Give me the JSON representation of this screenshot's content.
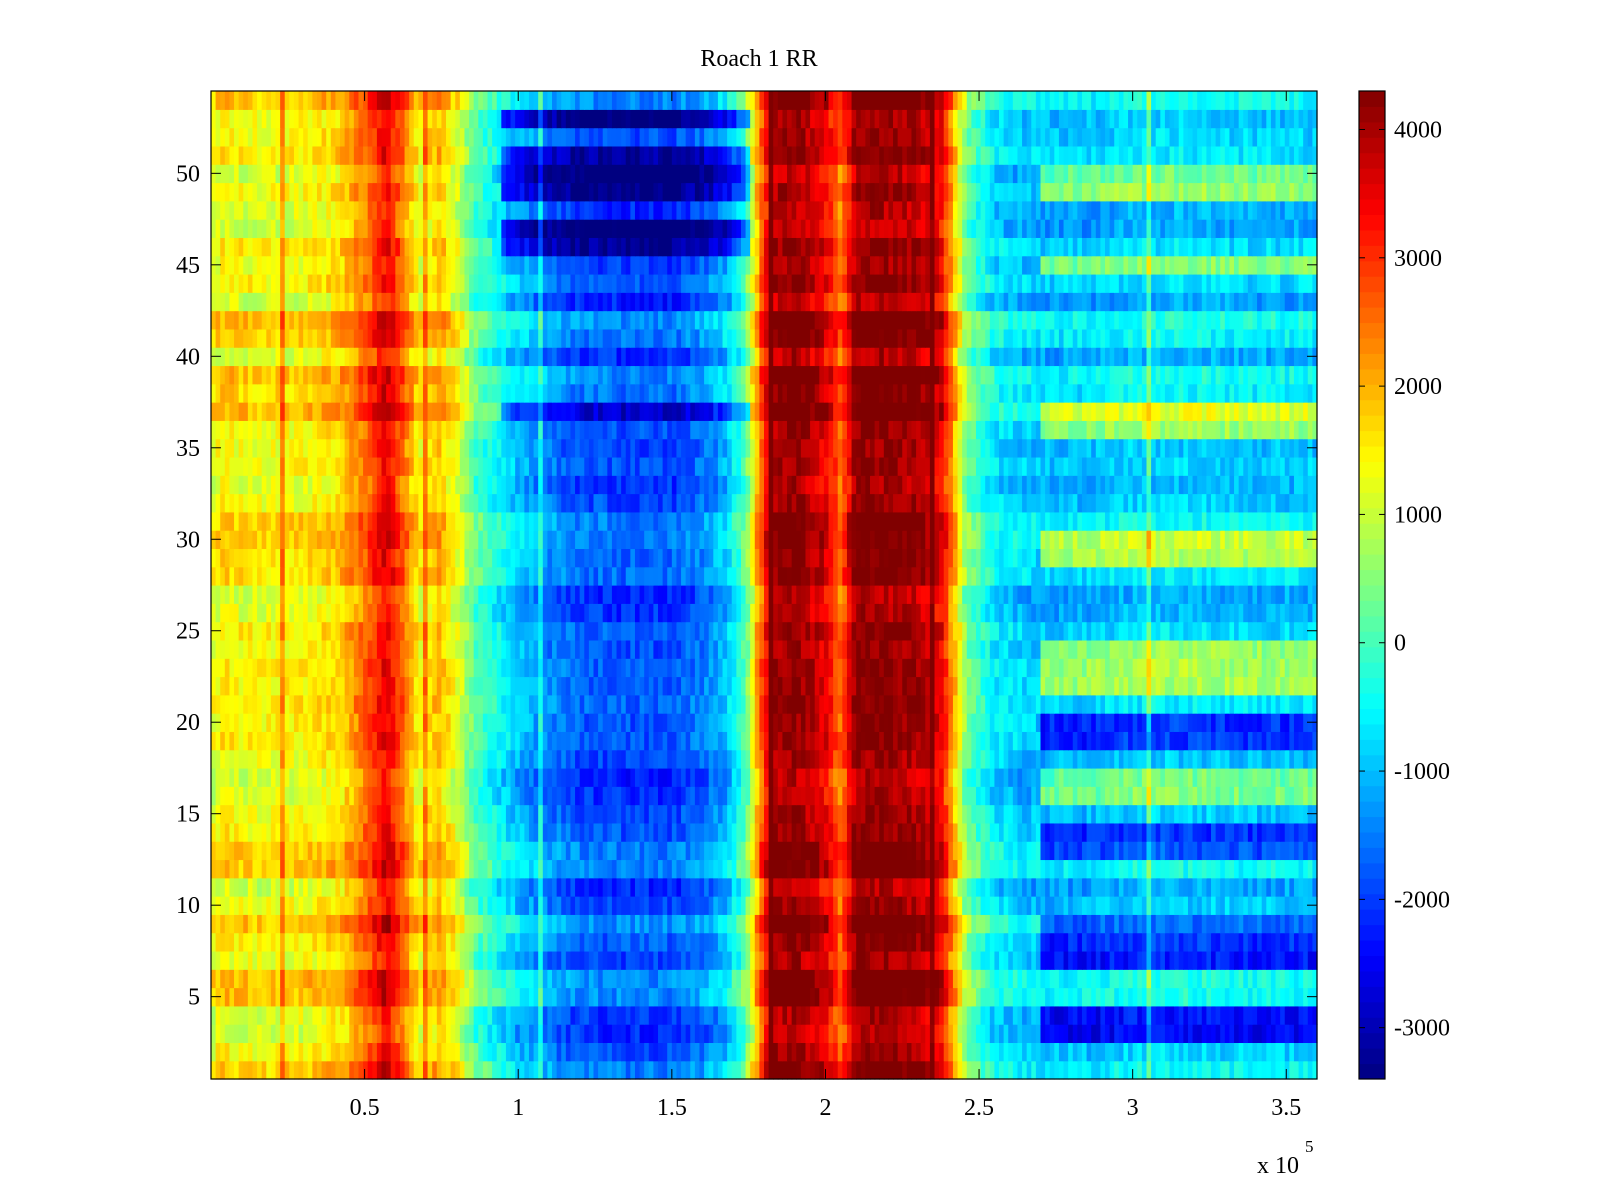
{
  "chart_data": {
    "type": "heatmap",
    "title": "Roach 1 RR",
    "xlabel": "",
    "ylabel": "",
    "x_exponent_label": "x 10",
    "x_exponent": "5",
    "xlim": [
      0,
      360000
    ],
    "ylim": [
      0.5,
      54.5
    ],
    "x_ticks": [
      50000,
      100000,
      150000,
      200000,
      250000,
      300000,
      350000
    ],
    "x_tick_labels": [
      "0.5",
      "1",
      "1.5",
      "2",
      "2.5",
      "3",
      "3.5"
    ],
    "y_ticks": [
      5,
      10,
      15,
      20,
      25,
      30,
      35,
      40,
      45,
      50
    ],
    "y_tick_labels": [
      "5",
      "10",
      "15",
      "20",
      "25",
      "30",
      "35",
      "40",
      "45",
      "50"
    ],
    "rows": 54,
    "colormap": "jet",
    "clim": [
      -3400,
      4300
    ],
    "colorbar": {
      "ticks": [
        -3000,
        -2000,
        -1000,
        0,
        1000,
        2000,
        3000,
        4000
      ],
      "tick_labels": [
        "-3000",
        "-2000",
        "-1000",
        "0",
        "1000",
        "2000",
        "3000",
        "4000"
      ],
      "position": "right"
    },
    "x_profile": {
      "x": [
        0,
        3000,
        15000,
        30000,
        42000,
        52000,
        57000,
        62000,
        68000,
        74000,
        80000,
        86000,
        92000,
        100000,
        110000,
        120000,
        135000,
        150000,
        160000,
        168000,
        174000,
        178000,
        182000,
        190000,
        200000,
        205000,
        210000,
        220000,
        230000,
        238000,
        242000,
        246000,
        255000,
        270000,
        285000,
        300000,
        320000,
        340000,
        360000
      ],
      "value": [
        1200,
        1600,
        1400,
        1500,
        1800,
        2800,
        3600,
        2700,
        1400,
        2000,
        1300,
        200,
        -300,
        -900,
        -1400,
        -1700,
        -1800,
        -1800,
        -1500,
        -900,
        200,
        2200,
        4000,
        4300,
        3600,
        2600,
        4300,
        4300,
        4100,
        3500,
        2000,
        400,
        -600,
        -900,
        -900,
        -700,
        -700,
        -800,
        -800
      ]
    },
    "notable_rows": {
      "strong_negative_middle": [
        37,
        46,
        47,
        49,
        50,
        51,
        53
      ],
      "positive_right_region": [
        16,
        17,
        22,
        23,
        24,
        29,
        30,
        36,
        37,
        45,
        49,
        50
      ],
      "negative_right_region": [
        3,
        4,
        7,
        8,
        9,
        13,
        14,
        19,
        20
      ]
    }
  }
}
